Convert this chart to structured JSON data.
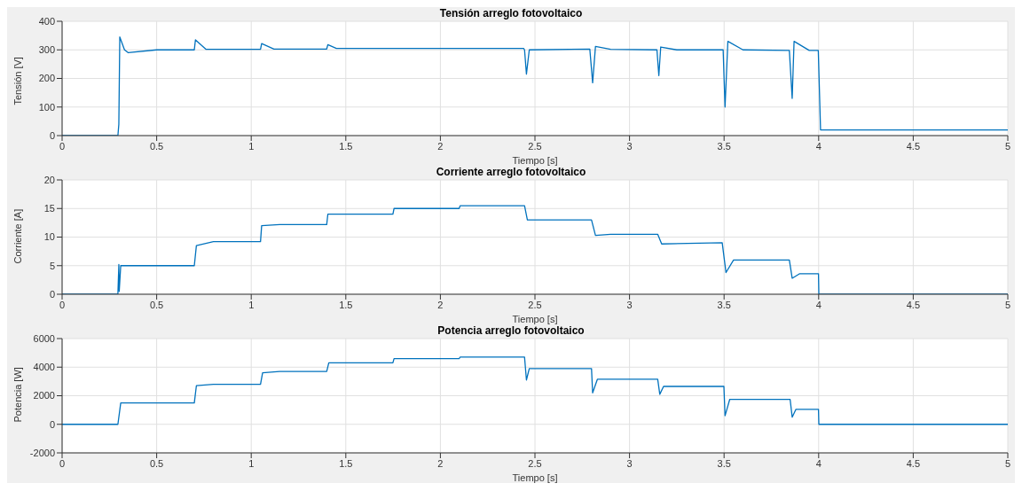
{
  "chart_data": [
    {
      "type": "line",
      "title": "Tensión arreglo fotovoltaico",
      "xlabel": "Tiempo [s]",
      "ylabel": "Tensión [V]",
      "xlim": [
        0,
        5
      ],
      "xticks": [
        0,
        0.5,
        1,
        1.5,
        2,
        2.5,
        3,
        3.5,
        4,
        4.5,
        5
      ],
      "ylim": [
        0,
        400
      ],
      "yticks": [
        0,
        100,
        200,
        300,
        400
      ],
      "grid": true,
      "series": [
        {
          "color": "#0072bd",
          "x": [
            0,
            0.295,
            0.3,
            0.305,
            0.33,
            0.35,
            0.5,
            0.699,
            0.705,
            0.76,
            1.049,
            1.055,
            1.12,
            1.399,
            1.405,
            1.45,
            2.44,
            2.445,
            2.455,
            2.47,
            2.79,
            2.805,
            2.82,
            2.9,
            3.145,
            3.155,
            3.165,
            3.25,
            3.495,
            3.505,
            3.52,
            3.6,
            3.845,
            3.86,
            3.87,
            3.95,
            3.998,
            4.01,
            5
          ],
          "values": [
            0,
            0,
            40,
            345,
            300,
            290,
            300,
            300,
            335,
            302,
            302,
            322,
            303,
            303,
            318,
            305,
            305,
            300,
            215,
            300,
            303,
            185,
            312,
            302,
            300,
            210,
            310,
            300,
            300,
            100,
            330,
            300,
            298,
            130,
            330,
            298,
            298,
            20,
            20
          ]
        }
      ]
    },
    {
      "type": "line",
      "title": "Corriente arreglo fotovoltaico",
      "xlabel": "Tiempo [s]",
      "ylabel": "Corriente [A]",
      "xlim": [
        0,
        5
      ],
      "xticks": [
        0,
        0.5,
        1,
        1.5,
        2,
        2.5,
        3,
        3.5,
        4,
        4.5,
        5
      ],
      "ylim": [
        0,
        20
      ],
      "yticks": [
        0,
        5,
        10,
        15,
        20
      ],
      "grid": true,
      "series": [
        {
          "color": "#0072bd",
          "x": [
            0,
            0.295,
            0.3,
            0.302,
            0.31,
            0.699,
            0.71,
            0.8,
            1.049,
            1.055,
            1.15,
            1.399,
            1.405,
            1.749,
            1.755,
            2.099,
            2.105,
            2.445,
            2.46,
            2.799,
            2.82,
            2.9,
            3.149,
            3.17,
            3.49,
            3.51,
            3.55,
            3.845,
            3.86,
            3.9,
            3.999,
            4.001,
            5
          ],
          "values": [
            0,
            0,
            5.2,
            0.5,
            5,
            5,
            8.5,
            9.2,
            9.2,
            12,
            12.2,
            12.2,
            14,
            14,
            15,
            15,
            15.5,
            15.5,
            13,
            13,
            10.3,
            10.5,
            10.5,
            8.8,
            9,
            3.8,
            6,
            6,
            2.8,
            3.6,
            3.6,
            0,
            0
          ]
        }
      ]
    },
    {
      "type": "line",
      "title": "Potencia arreglo fotovoltaico",
      "xlabel": "Tiempo [s]",
      "ylabel": "Potencia [W]",
      "xlim": [
        0,
        5
      ],
      "xticks": [
        0,
        0.5,
        1,
        1.5,
        2,
        2.5,
        3,
        3.5,
        4,
        4.5,
        5
      ],
      "ylim": [
        -2000,
        6000
      ],
      "yticks": [
        -2000,
        0,
        2000,
        4000,
        6000
      ],
      "grid": true,
      "series": [
        {
          "color": "#0072bd",
          "x": [
            0,
            0.295,
            0.31,
            0.699,
            0.71,
            0.8,
            1.049,
            1.06,
            1.15,
            1.399,
            1.41,
            1.749,
            1.755,
            2.099,
            2.105,
            2.445,
            2.455,
            2.47,
            2.799,
            2.805,
            2.83,
            3.149,
            3.16,
            3.18,
            3.499,
            3.505,
            3.53,
            3.849,
            3.86,
            3.88,
            3.999,
            4.001,
            5
          ],
          "values": [
            0,
            0,
            1500,
            1500,
            2700,
            2800,
            2800,
            3600,
            3700,
            3700,
            4300,
            4300,
            4600,
            4600,
            4700,
            4700,
            3100,
            3900,
            3900,
            2200,
            3150,
            3150,
            2100,
            2650,
            2650,
            600,
            1750,
            1750,
            500,
            1050,
            1050,
            0,
            0
          ]
        }
      ]
    }
  ]
}
